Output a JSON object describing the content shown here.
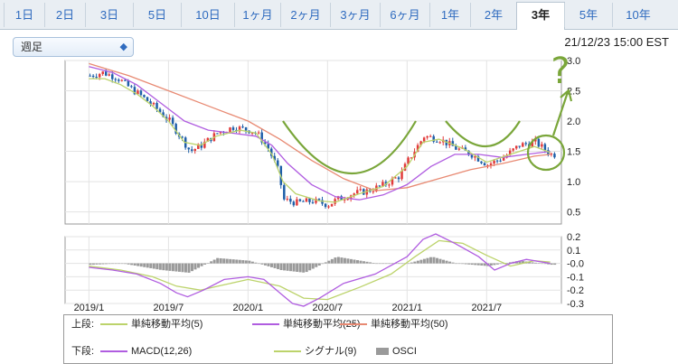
{
  "tabs": [
    {
      "label": "1日"
    },
    {
      "label": "2日"
    },
    {
      "label": "3日"
    },
    {
      "label": "5日"
    },
    {
      "label": "10日"
    },
    {
      "label": "1ヶ月"
    },
    {
      "label": "2ヶ月"
    },
    {
      "label": "3ヶ月"
    },
    {
      "label": "6ヶ月"
    },
    {
      "label": "1年"
    },
    {
      "label": "2年"
    },
    {
      "label": "3年"
    },
    {
      "label": "5年"
    },
    {
      "label": "10年"
    }
  ],
  "active_tab": "3年",
  "period_select": {
    "value": "週足"
  },
  "timestamp": "21/12/23 15:00 EST",
  "annotation": {
    "text": "?"
  },
  "colors": {
    "tab_link": "#2f6bbf",
    "ma5": "#bcd36b",
    "ma25": "#b05de0",
    "ma50": "#e88a73",
    "macd": "#b05de0",
    "signal": "#bcd36b",
    "osci": "#9a9a9a",
    "annotation": "#7aa63a",
    "candle_up": "#e23b3b",
    "candle_down": "#1f5fa8"
  },
  "legend": {
    "upper_label": "上段:",
    "lower_label": "下段:",
    "ma5": "単純移動平均(5)",
    "ma25": "単純移動平均(25)",
    "ma50": "単純移動平均(50)",
    "macd": "MACD(12,26)",
    "signal": "シグナル(9)",
    "osci": "OSCI"
  },
  "chart_data": [
    {
      "type": "line",
      "subtype": "candlestick-weekly",
      "x_ticks": [
        "2019/1",
        "2019/7",
        "2020/1",
        "2020/7",
        "2021/1",
        "2021/7"
      ],
      "ylim": [
        0.3,
        3.0
      ],
      "y_ticks": [
        {
          "v": 3.0,
          "label": "3.0"
        },
        {
          "v": 2.5,
          "label": "2.5"
        },
        {
          "v": 2.0,
          "label": "2.0"
        },
        {
          "v": 1.5,
          "label": "1.5"
        },
        {
          "v": 1.0,
          "label": "1.0"
        },
        {
          "v": 0.5,
          "label": "0.5"
        }
      ],
      "grid": true,
      "price": [
        [
          2019.0,
          2.75
        ],
        [
          2019.08,
          2.8
        ],
        [
          2019.17,
          2.72
        ],
        [
          2019.25,
          2.55
        ],
        [
          2019.33,
          2.4
        ],
        [
          2019.42,
          2.2
        ],
        [
          2019.5,
          2.0
        ],
        [
          2019.58,
          1.7
        ],
        [
          2019.63,
          1.5
        ],
        [
          2019.7,
          1.6
        ],
        [
          2019.8,
          1.8
        ],
        [
          2019.9,
          1.9
        ],
        [
          2020.0,
          1.85
        ],
        [
          2020.05,
          1.8
        ],
        [
          2020.12,
          1.55
        ],
        [
          2020.18,
          1.2
        ],
        [
          2020.22,
          0.7
        ],
        [
          2020.3,
          0.65
        ],
        [
          2020.4,
          0.68
        ],
        [
          2020.5,
          0.62
        ],
        [
          2020.55,
          0.7
        ],
        [
          2020.65,
          0.8
        ],
        [
          2020.75,
          0.85
        ],
        [
          2020.85,
          0.95
        ],
        [
          2020.95,
          1.1
        ],
        [
          2021.0,
          1.35
        ],
        [
          2021.05,
          1.55
        ],
        [
          2021.1,
          1.75
        ],
        [
          2021.2,
          1.7
        ],
        [
          2021.3,
          1.55
        ],
        [
          2021.4,
          1.45
        ],
        [
          2021.5,
          1.28
        ],
        [
          2021.6,
          1.4
        ],
        [
          2021.7,
          1.6
        ],
        [
          2021.8,
          1.65
        ],
        [
          2021.9,
          1.45
        ]
      ],
      "ma5": [
        [
          2019.0,
          2.7
        ],
        [
          2019.1,
          2.7
        ],
        [
          2019.2,
          2.6
        ],
        [
          2019.3,
          2.45
        ],
        [
          2019.4,
          2.25
        ],
        [
          2019.5,
          2.0
        ],
        [
          2019.6,
          1.65
        ],
        [
          2019.7,
          1.6
        ],
        [
          2019.8,
          1.75
        ],
        [
          2019.95,
          1.85
        ],
        [
          2020.05,
          1.8
        ],
        [
          2020.15,
          1.45
        ],
        [
          2020.22,
          1.0
        ],
        [
          2020.3,
          0.8
        ],
        [
          2020.45,
          0.68
        ],
        [
          2020.55,
          0.66
        ],
        [
          2020.7,
          0.8
        ],
        [
          2020.85,
          0.92
        ],
        [
          2021.0,
          1.25
        ],
        [
          2021.1,
          1.65
        ],
        [
          2021.2,
          1.7
        ],
        [
          2021.35,
          1.55
        ],
        [
          2021.5,
          1.32
        ],
        [
          2021.65,
          1.45
        ],
        [
          2021.8,
          1.58
        ],
        [
          2021.9,
          1.48
        ]
      ],
      "ma25": [
        [
          2019.0,
          2.9
        ],
        [
          2019.15,
          2.8
        ],
        [
          2019.3,
          2.6
        ],
        [
          2019.45,
          2.3
        ],
        [
          2019.6,
          2.0
        ],
        [
          2019.75,
          1.85
        ],
        [
          2019.9,
          1.8
        ],
        [
          2020.05,
          1.75
        ],
        [
          2020.15,
          1.6
        ],
        [
          2020.25,
          1.3
        ],
        [
          2020.4,
          0.95
        ],
        [
          2020.55,
          0.75
        ],
        [
          2020.7,
          0.7
        ],
        [
          2020.85,
          0.78
        ],
        [
          2021.0,
          0.95
        ],
        [
          2021.15,
          1.25
        ],
        [
          2021.3,
          1.45
        ],
        [
          2021.45,
          1.45
        ],
        [
          2021.6,
          1.4
        ],
        [
          2021.75,
          1.45
        ],
        [
          2021.9,
          1.5
        ]
      ],
      "ma50": [
        [
          2019.0,
          2.95
        ],
        [
          2019.25,
          2.75
        ],
        [
          2019.5,
          2.5
        ],
        [
          2019.75,
          2.25
        ],
        [
          2020.0,
          2.0
        ],
        [
          2020.2,
          1.7
        ],
        [
          2020.4,
          1.35
        ],
        [
          2020.6,
          1.05
        ],
        [
          2020.8,
          0.85
        ],
        [
          2021.0,
          0.9
        ],
        [
          2021.2,
          1.05
        ],
        [
          2021.4,
          1.2
        ],
        [
          2021.6,
          1.3
        ],
        [
          2021.8,
          1.42
        ],
        [
          2021.9,
          1.45
        ]
      ]
    },
    {
      "type": "line",
      "subtype": "macd",
      "ylim": [
        -0.3,
        0.2
      ],
      "y_ticks": [
        {
          "v": 0.2,
          "label": "0.2"
        },
        {
          "v": 0.1,
          "label": "0.1"
        },
        {
          "v": 0.0,
          "label": "-0.0"
        },
        {
          "v": -0.1,
          "label": "-0.1"
        },
        {
          "v": -0.2,
          "label": "-0.2"
        },
        {
          "v": -0.3,
          "label": "-0.3"
        }
      ],
      "macd": [
        [
          2019.0,
          -0.03
        ],
        [
          2019.15,
          -0.05
        ],
        [
          2019.3,
          -0.08
        ],
        [
          2019.45,
          -0.15
        ],
        [
          2019.55,
          -0.22
        ],
        [
          2019.62,
          -0.25
        ],
        [
          2019.72,
          -0.2
        ],
        [
          2019.85,
          -0.12
        ],
        [
          2020.0,
          -0.1
        ],
        [
          2020.1,
          -0.12
        ],
        [
          2020.2,
          -0.22
        ],
        [
          2020.28,
          -0.3
        ],
        [
          2020.35,
          -0.32
        ],
        [
          2020.45,
          -0.26
        ],
        [
          2020.6,
          -0.15
        ],
        [
          2020.8,
          -0.08
        ],
        [
          2021.0,
          0.05
        ],
        [
          2021.1,
          0.18
        ],
        [
          2021.18,
          0.22
        ],
        [
          2021.3,
          0.15
        ],
        [
          2021.45,
          0.05
        ],
        [
          2021.55,
          -0.05
        ],
        [
          2021.65,
          0.0
        ],
        [
          2021.75,
          0.03
        ],
        [
          2021.9,
          0.0
        ]
      ],
      "signal": [
        [
          2019.0,
          -0.02
        ],
        [
          2019.2,
          -0.05
        ],
        [
          2019.4,
          -0.1
        ],
        [
          2019.55,
          -0.17
        ],
        [
          2019.7,
          -0.2
        ],
        [
          2019.85,
          -0.16
        ],
        [
          2020.0,
          -0.12
        ],
        [
          2020.2,
          -0.17
        ],
        [
          2020.35,
          -0.26
        ],
        [
          2020.5,
          -0.27
        ],
        [
          2020.7,
          -0.18
        ],
        [
          2020.9,
          -0.08
        ],
        [
          2021.05,
          0.05
        ],
        [
          2021.2,
          0.17
        ],
        [
          2021.35,
          0.15
        ],
        [
          2021.5,
          0.06
        ],
        [
          2021.65,
          -0.02
        ],
        [
          2021.8,
          0.02
        ],
        [
          2021.9,
          0.01
        ]
      ],
      "osci": [
        [
          2019.0,
          -0.01
        ],
        [
          2019.2,
          0.0
        ],
        [
          2019.45,
          -0.05
        ],
        [
          2019.62,
          -0.07
        ],
        [
          2019.8,
          0.04
        ],
        [
          2020.0,
          0.02
        ],
        [
          2020.2,
          -0.05
        ],
        [
          2020.35,
          -0.07
        ],
        [
          2020.55,
          0.05
        ],
        [
          2020.8,
          0.0
        ],
        [
          2021.0,
          0.0
        ],
        [
          2021.15,
          0.05
        ],
        [
          2021.3,
          0.0
        ],
        [
          2021.5,
          -0.02
        ],
        [
          2021.7,
          0.02
        ],
        [
          2021.9,
          -0.01
        ]
      ]
    }
  ]
}
